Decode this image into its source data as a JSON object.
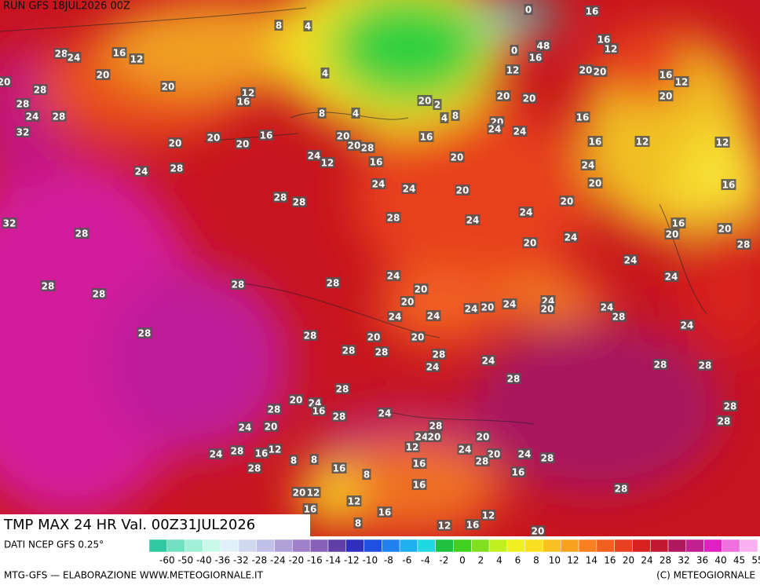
{
  "header": {
    "run": "RUN GFS 18JUL2026 00Z",
    "title": "TMP MAX 24 HR Val. 00Z31JUL2026"
  },
  "legend": {
    "source": "DATI NCEP GFS 0.25°",
    "ticks": [
      -60,
      -50,
      -40,
      -36,
      -32,
      -28,
      -24,
      -20,
      -16,
      -14,
      -12,
      -10,
      -8,
      -6,
      -4,
      -2,
      0,
      2,
      4,
      6,
      8,
      10,
      12,
      14,
      16,
      20,
      24,
      28,
      32,
      36,
      40,
      45,
      55
    ]
  },
  "footer": {
    "left": "MTG-GFS — ELABORAZIONE WWW.METEOGIORNALE.IT",
    "right": "(C) METEOGIORNALE"
  },
  "map_labels": [
    0,
    16,
    8,
    4,
    0,
    48,
    16,
    12,
    16,
    28,
    24,
    16,
    12,
    20,
    4,
    12,
    20,
    20,
    16,
    12,
    20,
    28,
    20,
    12,
    16,
    28,
    20,
    20,
    2,
    20,
    20,
    24,
    28,
    8,
    4,
    4,
    8,
    16,
    20,
    24,
    24,
    32,
    16,
    20,
    16,
    20,
    20,
    20,
    20,
    28,
    16,
    12,
    12,
    24,
    12,
    16,
    20,
    24,
    28,
    24,
    24,
    24,
    20,
    20,
    16,
    28,
    28,
    20,
    24,
    28,
    24,
    32,
    16,
    20,
    20,
    28,
    20,
    24,
    28,
    24,
    24,
    24,
    28,
    28,
    20,
    28,
    28,
    20,
    24,
    24,
    24,
    20,
    20,
    24,
    28,
    24,
    24,
    24,
    28,
    28,
    20,
    20,
    28,
    28,
    28,
    24,
    24,
    28,
    28,
    28,
    28,
    20,
    24,
    16,
    28,
    28,
    24,
    28,
    28,
    24,
    20,
    28,
    24,
    20,
    20,
    12,
    24,
    20,
    24,
    28,
    28,
    24,
    28,
    16,
    12,
    8,
    8,
    28,
    16,
    8,
    16,
    16,
    16,
    28,
    20,
    12,
    12,
    16,
    16,
    12,
    8,
    12,
    16,
    20
  ]
}
